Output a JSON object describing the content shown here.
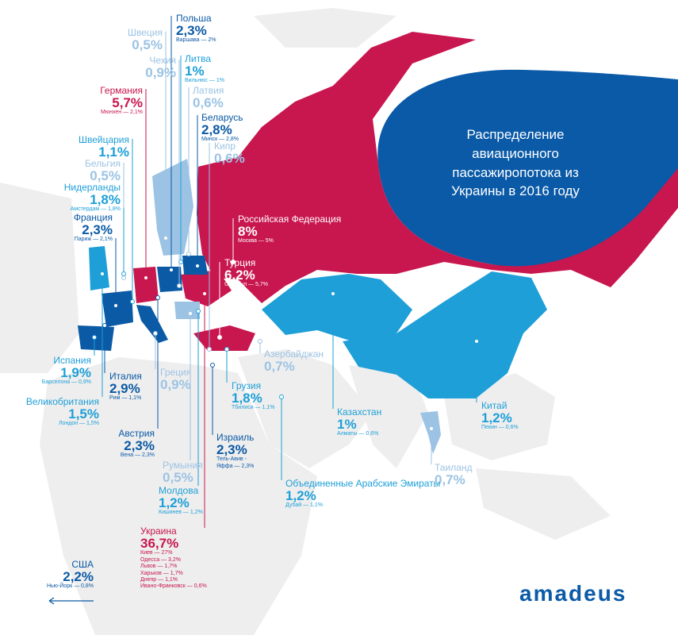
{
  "title": "Распределение авиационного пассажиропотока из Украины в 2016 году",
  "logo": "amadeus",
  "labels": [
    {
      "name": "Польша",
      "share": "2,3%",
      "cities": [
        "Варшава — 2%"
      ],
      "color": "#0b5aa5"
    },
    {
      "name": "Швеция",
      "share": "0,5%",
      "cities": [],
      "color": "#9cc3e4"
    },
    {
      "name": "Литва",
      "share": "1%",
      "cities": [
        "Вильнюс — 1%"
      ],
      "color": "#1e9fd8"
    },
    {
      "name": "Чехия",
      "share": "0,9%",
      "cities": [],
      "color": "#9cc3e4"
    },
    {
      "name": "Латвия",
      "share": "0,6%",
      "cities": [],
      "color": "#9cc3e4"
    },
    {
      "name": "Германия",
      "share": "5,7%",
      "cities": [
        "Мюнхен — 2,1%"
      ],
      "color": "#c8164e"
    },
    {
      "name": "Беларусь",
      "share": "2,8%",
      "cities": [
        "Минск — 2,8%"
      ],
      "color": "#0b5aa5"
    },
    {
      "name": "Швейцария",
      "share": "1,1%",
      "cities": [],
      "color": "#1e9fd8"
    },
    {
      "name": "Кипр",
      "share": "0,6%",
      "cities": [],
      "color": "#9cc3e4"
    },
    {
      "name": "Бельгия",
      "share": "0,5%",
      "cities": [],
      "color": "#9cc3e4"
    },
    {
      "name": "Нидерланды",
      "share": "1,8%",
      "cities": [
        "Амстердам — 1,8%"
      ],
      "color": "#1e9fd8"
    },
    {
      "name": "Франция",
      "share": "2,3%",
      "cities": [
        "Париж — 2,1%"
      ],
      "color": "#0b5aa5"
    },
    {
      "name": "Российская Федерация",
      "share": "8%",
      "cities": [
        "Москва — 5%"
      ],
      "color": "#ffffff"
    },
    {
      "name": "Турция",
      "share": "6,2%",
      "cities": [
        "Стамбул — 5,7%"
      ],
      "color": "#ffffff"
    },
    {
      "name": "Азербайджан",
      "share": "0,7%",
      "cities": [],
      "color": "#9cc3e4"
    },
    {
      "name": "Испания",
      "share": "1,9%",
      "cities": [
        "Барселона — 0,9%"
      ],
      "color": "#1e9fd8"
    },
    {
      "name": "Италия",
      "share": "2,9%",
      "cities": [
        "Рим — 1,1%"
      ],
      "color": "#0b5aa5"
    },
    {
      "name": "Греция",
      "share": "0,9%",
      "cities": [],
      "color": "#9cc3e4"
    },
    {
      "name": "Грузия",
      "share": "1,8%",
      "cities": [
        "Тбилиси — 1,1%"
      ],
      "color": "#1e9fd8"
    },
    {
      "name": "Великобритания",
      "share": "1,5%",
      "cities": [
        "Лондон — 1,5%"
      ],
      "color": "#1e9fd8"
    },
    {
      "name": "Казахстан",
      "share": "1%",
      "cities": [
        "Алматы — 0,6%"
      ],
      "color": "#1e9fd8"
    },
    {
      "name": "Китай",
      "share": "1,2%",
      "cities": [
        "Пекин — 0,6%"
      ],
      "color": "#1e9fd8"
    },
    {
      "name": "Австрия",
      "share": "2,3%",
      "cities": [
        "Вена — 2,3%"
      ],
      "color": "#0b5aa5"
    },
    {
      "name": "Израиль",
      "share": "2,3%",
      "cities": [
        "Тель-Авив -",
        "Яффа — 2,3%"
      ],
      "color": "#0b5aa5"
    },
    {
      "name": "Таиланд",
      "share": "0,7%",
      "cities": [],
      "color": "#9cc3e4"
    },
    {
      "name": "Румыния",
      "share": "0,5%",
      "cities": [],
      "color": "#9cc3e4"
    },
    {
      "name": "Объединенные Арабские Эмираты",
      "share": "1,2%",
      "cities": [
        "Дубай — 1,1%"
      ],
      "color": "#1e9fd8"
    },
    {
      "name": "Молдова",
      "share": "1,2%",
      "cities": [
        "Кишинев — 1,2%"
      ],
      "color": "#1e9fd8"
    },
    {
      "name": "Украина",
      "share": "36,7%",
      "cities": [
        "Киев — 27%",
        "Одесса — 3,2%",
        "Львов — 1,7%",
        "Харьков — 1,7%",
        "Днепр — 1,1%",
        "Ивано-Франковск — 0,6%"
      ],
      "color": "#c8164e"
    },
    {
      "name": "США",
      "share": "2,2%",
      "cities": [
        "Нью-Йорк — 0,8%"
      ],
      "color": "#0b5aa5"
    }
  ]
}
